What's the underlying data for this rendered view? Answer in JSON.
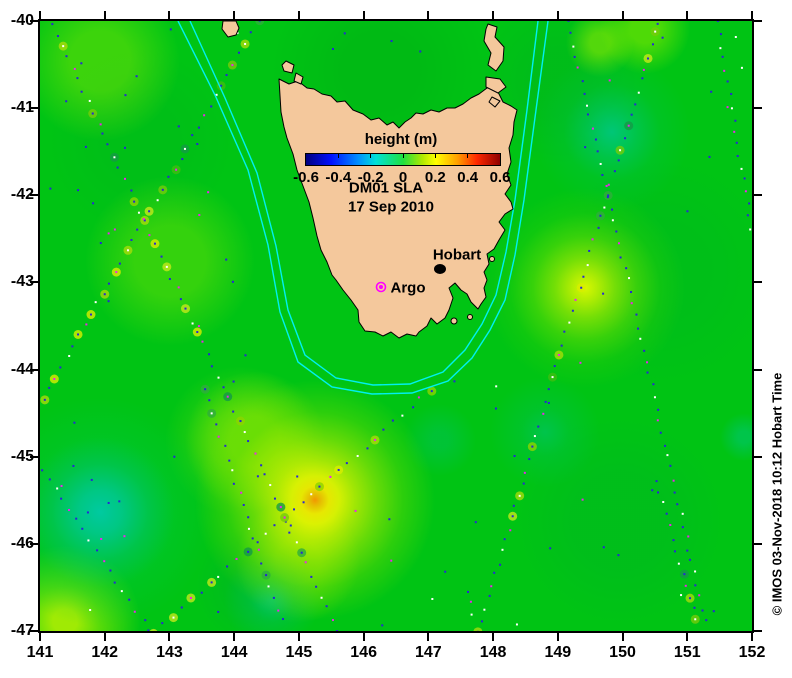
{
  "map": {
    "credit": "© IMOS 03-Nov-2018 10:12 Hobart Time",
    "annotations": {
      "title": "DM01 SLA",
      "date": "17 Sep 2010"
    },
    "markers": {
      "hobart_label": "Hobart",
      "argo_label": "Argo"
    },
    "colorbar": {
      "title": "height (m)",
      "ticks": [
        "-0.6",
        "-0.4",
        "-0.2",
        "0",
        "0.2",
        "0.4",
        "0.6"
      ]
    },
    "axes": {
      "x_ticks": [
        "141",
        "142",
        "143",
        "144",
        "145",
        "146",
        "147",
        "148",
        "149",
        "150",
        "151",
        "152"
      ],
      "y_ticks": [
        "-40",
        "-41",
        "-42",
        "-43",
        "-44",
        "-45",
        "-46",
        "-47"
      ]
    },
    "colors": {
      "land": "#f4c89c",
      "coastline": "#000000",
      "ocean_base": "#00c414",
      "shelf_contour": "#00f0f0",
      "hobart_marker": "#000000",
      "argo_marker": "#ff00ff"
    }
  },
  "chart_data": {
    "type": "heatmap",
    "title": "DM01 SLA",
    "subtitle": "17 Sep 2010",
    "color_label": "height (m)",
    "colormap": "jet",
    "color_range": [
      -0.6,
      0.6
    ],
    "colorbar_ticks": [
      -0.6,
      -0.4,
      -0.2,
      0,
      0.2,
      0.4,
      0.6
    ],
    "x_axis": {
      "range": [
        141,
        152
      ],
      "ticks": [
        141,
        142,
        143,
        144,
        145,
        146,
        147,
        148,
        149,
        150,
        151,
        152
      ]
    },
    "y_axis": {
      "range": [
        -47,
        -40
      ],
      "ticks": [
        -40,
        -41,
        -42,
        -43,
        -44,
        -45,
        -46,
        -47
      ]
    },
    "markers": [
      {
        "label": "Hobart",
        "lon": 147.2,
        "lat": -42.85
      },
      {
        "label": "Argo",
        "lon": 146.3,
        "lat": -43.05
      }
    ]
  }
}
